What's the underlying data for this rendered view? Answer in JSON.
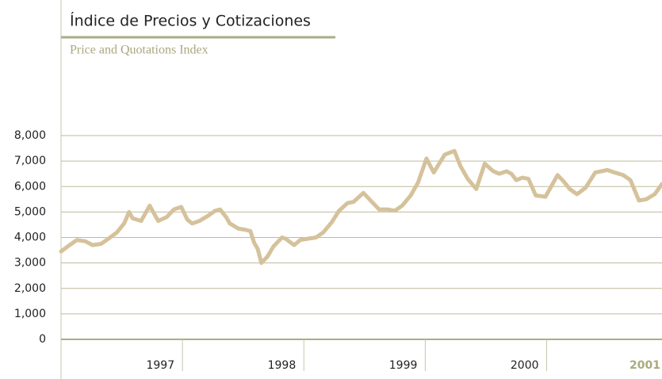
{
  "chart_data": {
    "type": "line",
    "title": "Índice de Precios y Cotizaciones",
    "subtitle": "Price and Quotations Index",
    "year_bands": [
      "1997",
      "1998",
      "1999",
      "2000",
      "2001"
    ],
    "x": [
      1997.0,
      1997.07,
      1997.13,
      1997.2,
      1997.26,
      1997.33,
      1997.39,
      1997.46,
      1997.52,
      1997.56,
      1997.59,
      1997.66,
      1997.73,
      1997.8,
      1997.87,
      1997.93,
      1997.99,
      1998.04,
      1998.08,
      1998.14,
      1998.21,
      1998.27,
      1998.31,
      1998.36,
      1998.39,
      1998.46,
      1998.52,
      1998.56,
      1998.59,
      1998.62,
      1998.65,
      1998.7,
      1998.75,
      1998.82,
      1998.85,
      1998.92,
      1998.97,
      1999.03,
      1999.1,
      1999.16,
      1999.23,
      1999.29,
      1999.36,
      1999.41,
      1999.49,
      1999.54,
      1999.62,
      1999.69,
      1999.75,
      1999.81,
      1999.88,
      1999.94,
      2000.01,
      2000.07,
      2000.16,
      2000.24,
      2000.29,
      2000.35,
      2000.42,
      2000.49,
      2000.56,
      2000.61,
      2000.67,
      2000.71,
      2000.75,
      2000.8,
      2000.85,
      2000.91,
      2000.99,
      2001.09,
      2001.14,
      2001.19,
      2001.25,
      2001.32,
      2001.4,
      2001.5,
      2001.56,
      2001.63,
      2001.69,
      2001.76,
      2001.82,
      2001.89,
      2001.95
    ],
    "values": [
      3450,
      3700,
      3900,
      3850,
      3700,
      3750,
      3950,
      4200,
      4550,
      5000,
      4750,
      4650,
      5250,
      4650,
      4800,
      5100,
      5200,
      4700,
      4550,
      4650,
      4850,
      5050,
      5100,
      4800,
      4550,
      4350,
      4300,
      4250,
      3800,
      3550,
      3000,
      3250,
      3650,
      4000,
      3950,
      3700,
      3900,
      3950,
      4000,
      4200,
      4600,
      5050,
      5350,
      5400,
      5750,
      5500,
      5100,
      5100,
      5050,
      5250,
      5650,
      6150,
      7100,
      6550,
      7250,
      7400,
      6800,
      6300,
      5900,
      6900,
      6600,
      6500,
      6600,
      6500,
      6250,
      6350,
      6300,
      5650,
      5600,
      6450,
      6200,
      5900,
      5700,
      5950,
      6550,
      6650,
      6550,
      6450,
      6250,
      5450,
      5500,
      5700,
      6100
    ],
    "color": "#d5c29b",
    "xlim": [
      1997,
      2001.95
    ],
    "ylim": [
      0,
      8000
    ],
    "yticks": [
      0,
      {
        "value": 1000,
        "label": "1,000"
      },
      {
        "value": 2000,
        "label": "2,000"
      },
      {
        "value": 3000,
        "label": "3,000"
      },
      {
        "value": 4000,
        "label": "4,000"
      },
      {
        "value": 5000,
        "label": "5,000"
      },
      {
        "value": 6000,
        "label": "6,000"
      },
      {
        "value": 7000,
        "label": "7,000"
      },
      {
        "value": 8000,
        "label": "8,000"
      }
    ],
    "grid": true
  }
}
